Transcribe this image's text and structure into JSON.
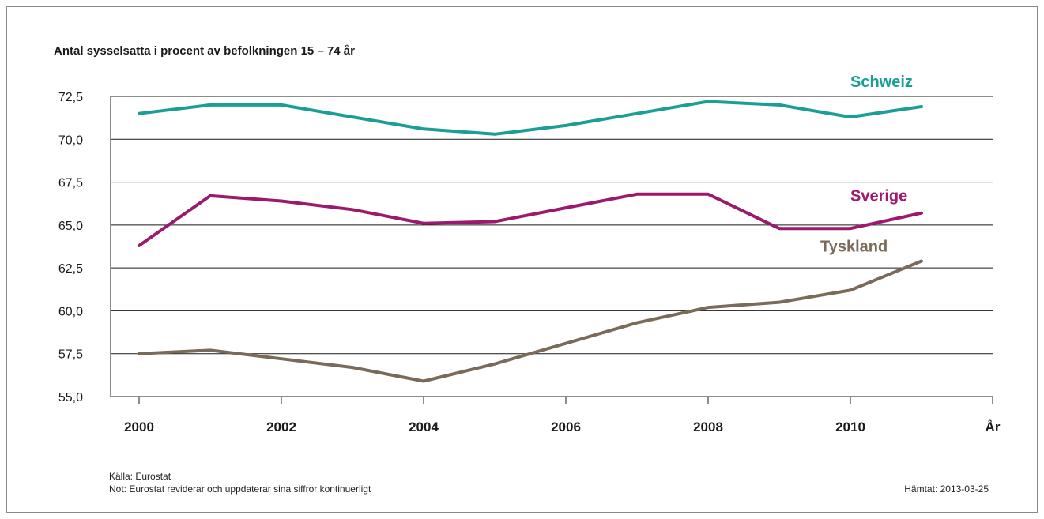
{
  "chart_data": {
    "type": "line",
    "title": "Antal sysselsatta i procent av befolkningen 15 – 74 år",
    "xlabel": "År",
    "ylabel": "",
    "x": [
      2000,
      2001,
      2002,
      2003,
      2004,
      2005,
      2006,
      2007,
      2008,
      2009,
      2010,
      2011
    ],
    "x_tick_labels": [
      "2000",
      "2002",
      "2004",
      "2006",
      "2008",
      "2010"
    ],
    "x_tick_values": [
      2000,
      2002,
      2004,
      2006,
      2008,
      2010
    ],
    "xlim": [
      1999.6,
      2012
    ],
    "y_tick_labels": [
      "55,0",
      "57,5",
      "60,0",
      "62,5",
      "65,0",
      "67,5",
      "70,0",
      "72,5"
    ],
    "y_tick_values": [
      55,
      57.5,
      60,
      62.5,
      65,
      67.5,
      70,
      72.5
    ],
    "ylim": [
      55,
      72.5
    ],
    "grid": "horizontal",
    "series": [
      {
        "name": "Schweiz",
        "color": "#1a9e96",
        "values": [
          71.5,
          72.0,
          72.0,
          71.3,
          70.6,
          70.3,
          70.8,
          71.5,
          72.2,
          72.0,
          71.3,
          71.9
        ]
      },
      {
        "name": "Sverige",
        "color": "#9b1a6e",
        "values": [
          63.8,
          66.7,
          66.4,
          65.9,
          65.1,
          65.2,
          66.0,
          66.8,
          66.8,
          64.8,
          64.8,
          65.7
        ]
      },
      {
        "name": "Tyskland",
        "color": "#7a6a5a",
        "values": [
          57.5,
          57.7,
          57.2,
          56.7,
          55.9,
          56.9,
          58.1,
          59.3,
          60.2,
          60.5,
          61.2,
          62.9
        ]
      }
    ]
  },
  "footer": {
    "source": "Källa: Eurostat",
    "note": "Not: Eurostat reviderar och uppdaterar sina siffror kontinuerligt",
    "retrieved": "Hämtat: 2013-03-25"
  }
}
